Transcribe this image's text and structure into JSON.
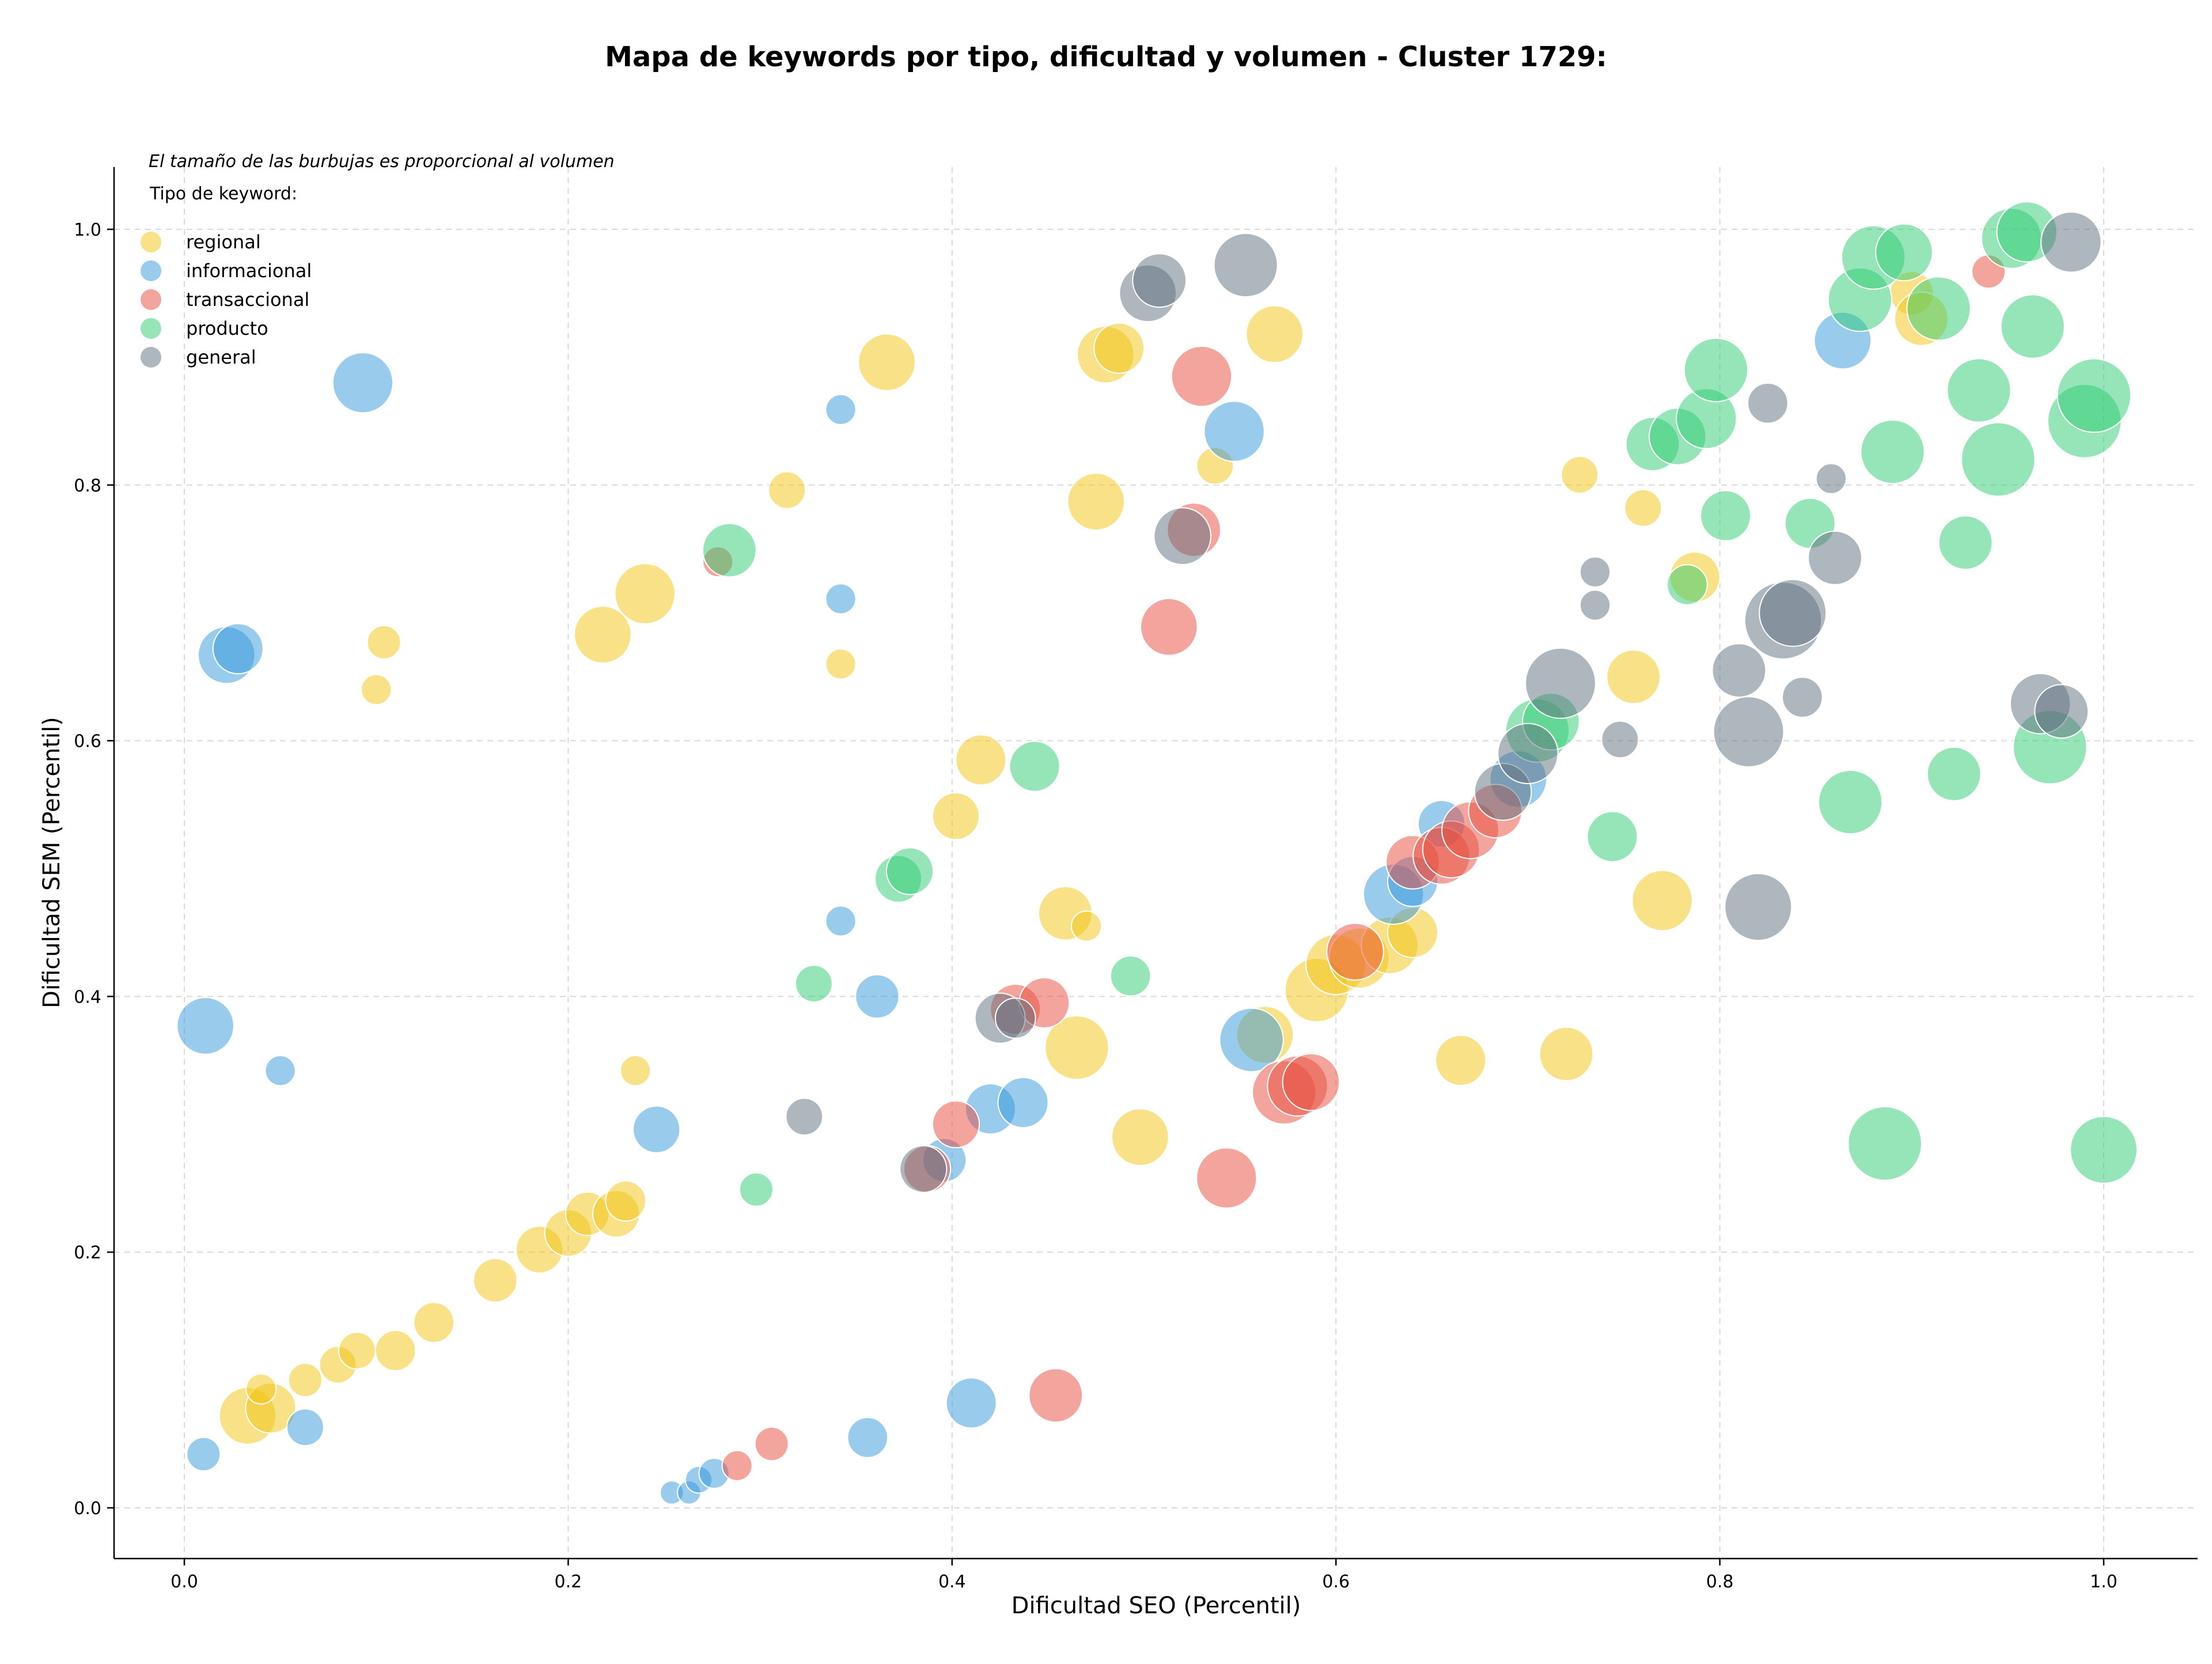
{
  "chart_data": {
    "type": "scatter",
    "title": "Mapa de keywords por tipo, dificultad y volumen - Cluster 1729:",
    "xlabel": "Dificultad SEO (Percentil)",
    "ylabel": "Dificultad SEM (Percentil)",
    "xlim": [
      -0.04,
      1.05
    ],
    "ylim": [
      -0.04,
      1.05
    ],
    "xticks": [
      0.0,
      0.2,
      0.4,
      0.6,
      0.8,
      1.0
    ],
    "xtick_labels": [
      "0.0",
      "0.2",
      "0.4",
      "0.6",
      "0.8",
      "1.0"
    ],
    "yticks": [
      0.0,
      0.2,
      0.4,
      0.6,
      0.8,
      1.0
    ],
    "ytick_labels": [
      "0.0",
      "0.2",
      "0.4",
      "0.6",
      "0.8",
      "1.0"
    ],
    "grid": true,
    "note": "El tamaño de las burbujas es proporcional al volumen",
    "legend_title": "Tipo de keyword:",
    "legend_position": "top-left",
    "series": [
      {
        "name": "regional",
        "color": "#f1c40f",
        "points": [
          [
            0.033,
            0.072,
            34
          ],
          [
            0.045,
            0.078,
            30
          ],
          [
            0.04,
            0.093,
            18
          ],
          [
            0.063,
            0.1,
            20
          ],
          [
            0.08,
            0.112,
            22
          ],
          [
            0.09,
            0.123,
            22
          ],
          [
            0.11,
            0.123,
            24
          ],
          [
            0.13,
            0.145,
            24
          ],
          [
            0.162,
            0.178,
            26
          ],
          [
            0.185,
            0.202,
            28
          ],
          [
            0.2,
            0.215,
            28
          ],
          [
            0.21,
            0.23,
            26
          ],
          [
            0.225,
            0.23,
            28
          ],
          [
            0.23,
            0.24,
            24
          ],
          [
            0.218,
            0.683,
            34
          ],
          [
            0.24,
            0.715,
            36
          ],
          [
            0.1,
            0.64,
            18
          ],
          [
            0.104,
            0.677,
            20
          ],
          [
            0.235,
            0.342,
            18
          ],
          [
            0.314,
            0.796,
            22
          ],
          [
            0.366,
            0.896,
            34
          ],
          [
            0.342,
            0.66,
            18
          ],
          [
            0.402,
            0.541,
            28
          ],
          [
            0.415,
            0.585,
            30
          ],
          [
            0.459,
            0.465,
            32
          ],
          [
            0.47,
            0.455,
            18
          ],
          [
            0.465,
            0.36,
            38
          ],
          [
            0.498,
            0.29,
            34
          ],
          [
            0.475,
            0.787,
            34
          ],
          [
            0.48,
            0.902,
            34
          ],
          [
            0.487,
            0.907,
            30
          ],
          [
            0.537,
            0.815,
            22
          ],
          [
            0.568,
            0.918,
            34
          ],
          [
            0.563,
            0.37,
            34
          ],
          [
            0.59,
            0.405,
            38
          ],
          [
            0.6,
            0.425,
            36
          ],
          [
            0.612,
            0.43,
            36
          ],
          [
            0.628,
            0.44,
            34
          ],
          [
            0.64,
            0.45,
            30
          ],
          [
            0.665,
            0.35,
            30
          ],
          [
            0.72,
            0.355,
            32
          ],
          [
            0.727,
            0.808,
            22
          ],
          [
            0.755,
            0.65,
            32
          ],
          [
            0.76,
            0.782,
            22
          ],
          [
            0.77,
            0.475,
            36
          ],
          [
            0.787,
            0.728,
            30
          ],
          [
            0.9,
            0.95,
            26
          ],
          [
            0.905,
            0.93,
            32
          ]
        ]
      },
      {
        "name": "informacional",
        "color": "#3498db",
        "points": [
          [
            0.022,
            0.667,
            34
          ],
          [
            0.028,
            0.672,
            30
          ],
          [
            0.093,
            0.88,
            36
          ],
          [
            0.011,
            0.377,
            34
          ],
          [
            0.05,
            0.342,
            18
          ],
          [
            0.01,
            0.042,
            20
          ],
          [
            0.063,
            0.063,
            22
          ],
          [
            0.254,
            0.012,
            14
          ],
          [
            0.263,
            0.012,
            14
          ],
          [
            0.268,
            0.022,
            16
          ],
          [
            0.276,
            0.027,
            18
          ],
          [
            0.342,
            0.859,
            18
          ],
          [
            0.342,
            0.711,
            18
          ],
          [
            0.342,
            0.459,
            18
          ],
          [
            0.361,
            0.4,
            26
          ],
          [
            0.246,
            0.296,
            28
          ],
          [
            0.356,
            0.055,
            24
          ],
          [
            0.41,
            0.082,
            30
          ],
          [
            0.396,
            0.272,
            26
          ],
          [
            0.42,
            0.312,
            30
          ],
          [
            0.437,
            0.317,
            30
          ],
          [
            0.547,
            0.842,
            36
          ],
          [
            0.556,
            0.366,
            38
          ],
          [
            0.63,
            0.48,
            36
          ],
          [
            0.64,
            0.49,
            30
          ],
          [
            0.655,
            0.535,
            28
          ],
          [
            0.695,
            0.57,
            34
          ],
          [
            0.864,
            0.913,
            34
          ]
        ]
      },
      {
        "name": "transaccional",
        "color": "#e74c3c",
        "points": [
          [
            0.288,
            0.033,
            18
          ],
          [
            0.306,
            0.05,
            20
          ],
          [
            0.278,
            0.74,
            18
          ],
          [
            0.402,
            0.3,
            28
          ],
          [
            0.387,
            0.265,
            28
          ],
          [
            0.433,
            0.39,
            30
          ],
          [
            0.448,
            0.395,
            30
          ],
          [
            0.454,
            0.088,
            32
          ],
          [
            0.543,
            0.258,
            36
          ],
          [
            0.53,
            0.885,
            36
          ],
          [
            0.526,
            0.765,
            32
          ],
          [
            0.513,
            0.689,
            34
          ],
          [
            0.573,
            0.325,
            38
          ],
          [
            0.58,
            0.33,
            36
          ],
          [
            0.587,
            0.333,
            34
          ],
          [
            0.61,
            0.435,
            34
          ],
          [
            0.64,
            0.505,
            32
          ],
          [
            0.655,
            0.51,
            34
          ],
          [
            0.66,
            0.515,
            34
          ],
          [
            0.67,
            0.53,
            34
          ],
          [
            0.683,
            0.545,
            32
          ],
          [
            0.94,
            0.967,
            20
          ]
        ]
      },
      {
        "name": "producto",
        "color": "#2ecc71",
        "points": [
          [
            0.284,
            0.749,
            32
          ],
          [
            0.298,
            0.249,
            20
          ],
          [
            0.328,
            0.41,
            22
          ],
          [
            0.372,
            0.492,
            28
          ],
          [
            0.378,
            0.498,
            28
          ],
          [
            0.443,
            0.58,
            30
          ],
          [
            0.493,
            0.416,
            24
          ],
          [
            0.705,
            0.608,
            38
          ],
          [
            0.712,
            0.615,
            34
          ],
          [
            0.744,
            0.525,
            30
          ],
          [
            0.765,
            0.832,
            32
          ],
          [
            0.778,
            0.838,
            34
          ],
          [
            0.783,
            0.722,
            24
          ],
          [
            0.793,
            0.852,
            36
          ],
          [
            0.798,
            0.89,
            38
          ],
          [
            0.803,
            0.776,
            30
          ],
          [
            0.847,
            0.77,
            30
          ],
          [
            0.868,
            0.552,
            38
          ],
          [
            0.873,
            0.945,
            38
          ],
          [
            0.88,
            0.978,
            38
          ],
          [
            0.886,
            0.285,
            44
          ],
          [
            0.89,
            0.826,
            38
          ],
          [
            0.896,
            0.982,
            34
          ],
          [
            0.914,
            0.938,
            38
          ],
          [
            0.922,
            0.574,
            32
          ],
          [
            0.928,
            0.755,
            32
          ],
          [
            0.935,
            0.874,
            38
          ],
          [
            0.945,
            0.82,
            44
          ],
          [
            0.952,
            0.993,
            36
          ],
          [
            0.96,
            0.998,
            36
          ],
          [
            0.963,
            0.924,
            38
          ],
          [
            0.972,
            0.595,
            44
          ],
          [
            0.99,
            0.85,
            44
          ],
          [
            0.995,
            0.87,
            44
          ],
          [
            1.0,
            0.28,
            40
          ]
        ]
      },
      {
        "name": "general",
        "color": "#5d6d7e",
        "points": [
          [
            0.323,
            0.306,
            22
          ],
          [
            0.425,
            0.383,
            30
          ],
          [
            0.433,
            0.383,
            24
          ],
          [
            0.385,
            0.265,
            28
          ],
          [
            0.502,
            0.95,
            34
          ],
          [
            0.508,
            0.96,
            32
          ],
          [
            0.553,
            0.972,
            38
          ],
          [
            0.52,
            0.76,
            34
          ],
          [
            0.687,
            0.56,
            34
          ],
          [
            0.7,
            0.59,
            36
          ],
          [
            0.717,
            0.645,
            42
          ],
          [
            0.735,
            0.732,
            18
          ],
          [
            0.735,
            0.706,
            18
          ],
          [
            0.748,
            0.601,
            22
          ],
          [
            0.81,
            0.655,
            32
          ],
          [
            0.815,
            0.607,
            42
          ],
          [
            0.82,
            0.47,
            40
          ],
          [
            0.825,
            0.864,
            24
          ],
          [
            0.833,
            0.694,
            46
          ],
          [
            0.838,
            0.7,
            40
          ],
          [
            0.843,
            0.634,
            24
          ],
          [
            0.858,
            0.805,
            18
          ],
          [
            0.86,
            0.743,
            32
          ],
          [
            0.967,
            0.629,
            36
          ],
          [
            0.978,
            0.623,
            32
          ],
          [
            0.983,
            0.99,
            36
          ]
        ]
      }
    ]
  }
}
